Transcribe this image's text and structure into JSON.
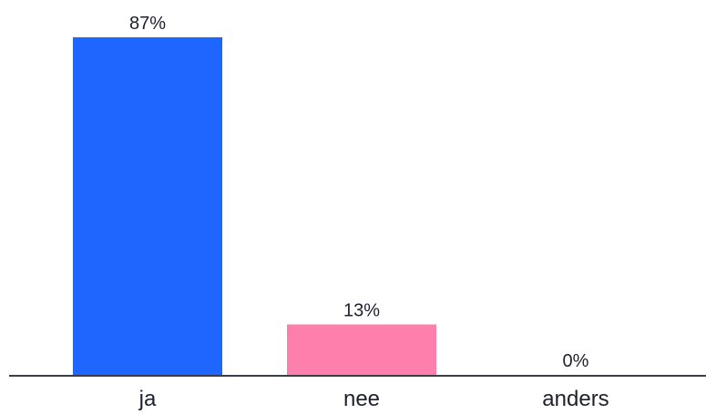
{
  "chart_data": {
    "type": "bar",
    "categories": [
      "ja",
      "nee",
      "anders"
    ],
    "values": [
      87,
      13,
      0
    ],
    "value_labels": [
      "87%",
      "13%",
      "0%"
    ],
    "colors": [
      "#1e66ff",
      "#ff7fac",
      "#2ec4b6"
    ],
    "ylim": [
      0,
      87
    ],
    "grid": false,
    "title": "",
    "xlabel": "",
    "ylabel": ""
  }
}
